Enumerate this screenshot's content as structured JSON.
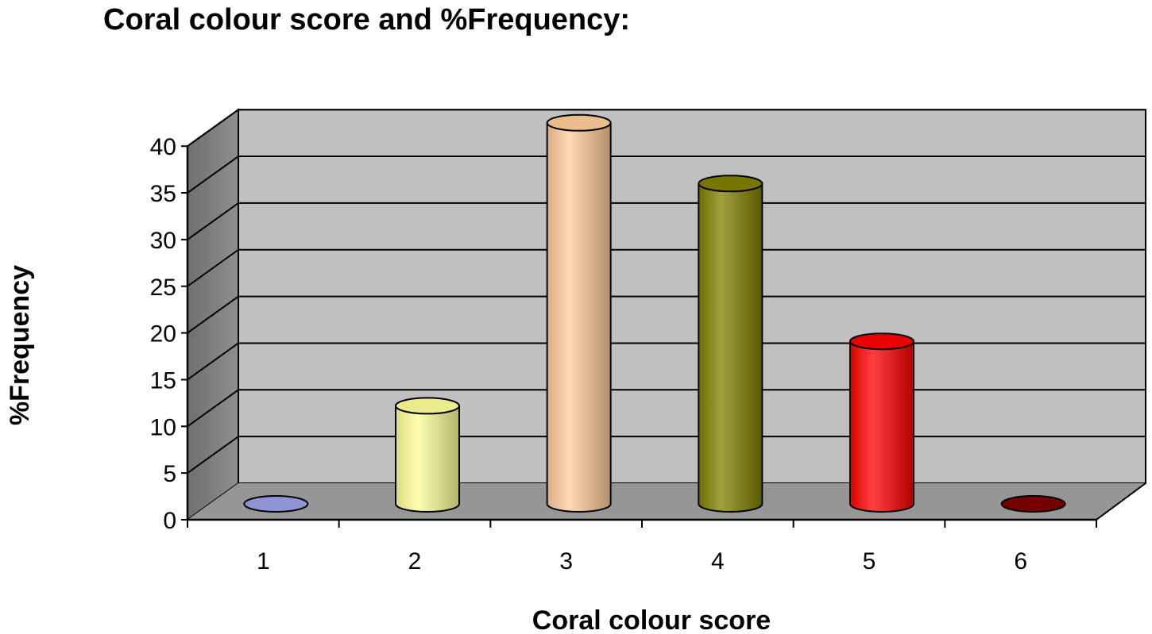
{
  "chart_data": {
    "type": "bar",
    "style": "3d-cylinder",
    "title": "Coral colour score and %Frequency:",
    "xlabel": "Coral colour score",
    "ylabel": "%Frequency",
    "categories": [
      "1",
      "2",
      "3",
      "4",
      "5",
      "6"
    ],
    "series": [
      {
        "values": [
          0,
          10.5,
          40.8,
          34.3,
          17.4,
          0
        ]
      }
    ],
    "bar_colors": [
      "#9aa0e6",
      "#ffff99",
      "#ffcc99",
      "#808000",
      "#ff0000",
      "#800000"
    ],
    "ylim": [
      0,
      40
    ],
    "yticks": [
      0,
      5,
      10,
      15,
      20,
      25,
      30,
      35,
      40
    ],
    "grid": true,
    "legend": "none",
    "wall_color": "#c0c0c0",
    "floor_color": "#969696",
    "side_wall_color": "#808080"
  }
}
